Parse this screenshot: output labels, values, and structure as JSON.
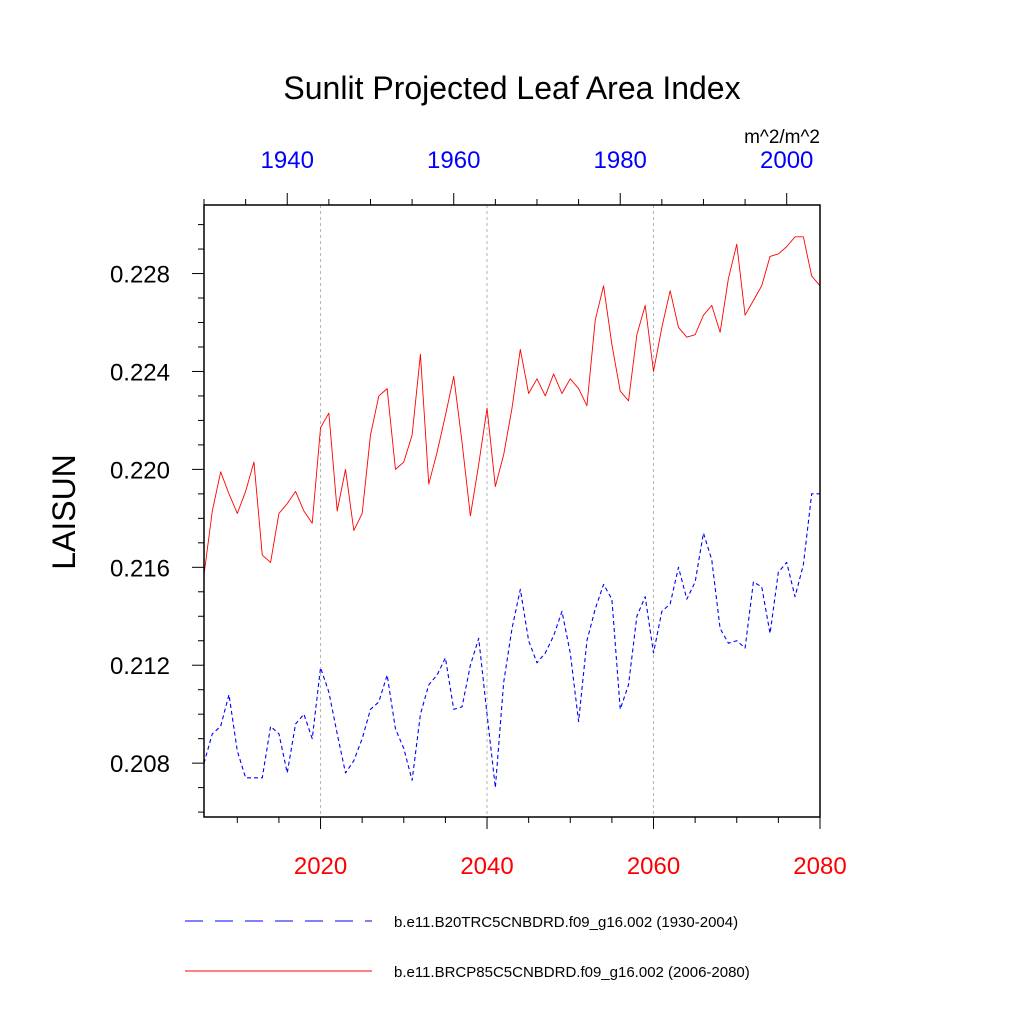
{
  "chart_data": {
    "type": "line",
    "title": "Sunlit Projected Leaf Area Index",
    "ylabel": "LAISUN",
    "units": "m^2/m^2",
    "ylim": [
      0.2058,
      0.2308
    ],
    "y_ticks": [
      0.208,
      0.212,
      0.216,
      0.22,
      0.224,
      0.228
    ],
    "y_tick_labels": [
      "0.208",
      "0.212",
      "0.216",
      "0.220",
      "0.224",
      "0.228"
    ],
    "y_minor_step": 0.001,
    "bottom_axis": {
      "range": [
        2006,
        2080
      ],
      "ticks": [
        2020,
        2040,
        2060,
        2080
      ],
      "tick_labels": [
        "2020",
        "2040",
        "2060",
        "2080"
      ],
      "minor_step": 5,
      "color": "#ff0000"
    },
    "top_axis": {
      "range": [
        1930,
        2004
      ],
      "ticks": [
        1940,
        1960,
        1980,
        2000
      ],
      "tick_labels": [
        "1940",
        "1960",
        "1980",
        "2000"
      ],
      "minor_step": 5,
      "color": "#0000ff"
    },
    "gridlines_x": [
      2020,
      2040,
      2060
    ],
    "series": [
      {
        "name": "b.e11.BRCP85C5CNBDRD.f09_g16.002 (2006-2080)",
        "color": "#ff0000",
        "dash": "",
        "axis": "bottom",
        "x_start": 2006,
        "values": [
          0.2157,
          0.2183,
          0.2199,
          0.219,
          0.2182,
          0.2191,
          0.2203,
          0.2165,
          0.2162,
          0.2182,
          0.2186,
          0.2191,
          0.2183,
          0.2178,
          0.2217,
          0.2223,
          0.2183,
          0.22,
          0.2175,
          0.2182,
          0.2214,
          0.223,
          0.2233,
          0.22,
          0.2203,
          0.2214,
          0.2247,
          0.2194,
          0.2207,
          0.2222,
          0.2238,
          0.2211,
          0.2181,
          0.2202,
          0.2225,
          0.2193,
          0.2206,
          0.2225,
          0.2249,
          0.2231,
          0.2237,
          0.223,
          0.2239,
          0.2231,
          0.2237,
          0.2233,
          0.2226,
          0.2261,
          0.2275,
          0.2251,
          0.2232,
          0.2228,
          0.2255,
          0.2267,
          0.224,
          0.2258,
          0.2273,
          0.2258,
          0.2254,
          0.2255,
          0.2263,
          0.2267,
          0.2256,
          0.2278,
          0.2292,
          0.2263,
          0.2269,
          0.2275,
          0.2287,
          0.2288,
          0.2291,
          0.2295,
          0.2295,
          0.2279,
          0.2275
        ]
      },
      {
        "name": "b.e11.B20TRC5CNBDRD.f09_g16.002 (1930-2004)",
        "color": "#0000ff",
        "dash": "4,3",
        "axis": "top",
        "x_start": 1930,
        "values": [
          0.208,
          0.2092,
          0.2095,
          0.2108,
          0.2085,
          0.2074,
          0.2074,
          0.2074,
          0.2095,
          0.2092,
          0.2076,
          0.2096,
          0.21,
          0.209,
          0.2119,
          0.2109,
          0.2092,
          0.2076,
          0.2081,
          0.209,
          0.2102,
          0.2105,
          0.2116,
          0.2094,
          0.2086,
          0.2073,
          0.21,
          0.2112,
          0.2116,
          0.2123,
          0.2102,
          0.2103,
          0.212,
          0.2131,
          0.21,
          0.207,
          0.2113,
          0.2135,
          0.2151,
          0.213,
          0.2121,
          0.2125,
          0.2132,
          0.2142,
          0.2125,
          0.2097,
          0.213,
          0.2143,
          0.2153,
          0.2147,
          0.2102,
          0.2112,
          0.214,
          0.2148,
          0.2125,
          0.2142,
          0.2145,
          0.216,
          0.2147,
          0.2154,
          0.2174,
          0.2163,
          0.2135,
          0.2129,
          0.213,
          0.2127,
          0.2154,
          0.2152,
          0.2133,
          0.2158,
          0.2162,
          0.2148,
          0.2161,
          0.219,
          0.219
        ]
      }
    ],
    "legend": {
      "placement": "bottom",
      "entries": [
        {
          "label": "b.e11.B20TRC5CNBDRD.f09_g16.002 (1930-2004)",
          "color": "#0000ff",
          "dash": "18,12"
        },
        {
          "label": "b.e11.BRCP85C5CNBDRD.f09_g16.002 (2006-2080)",
          "color": "#ff0000",
          "dash": ""
        }
      ]
    }
  }
}
